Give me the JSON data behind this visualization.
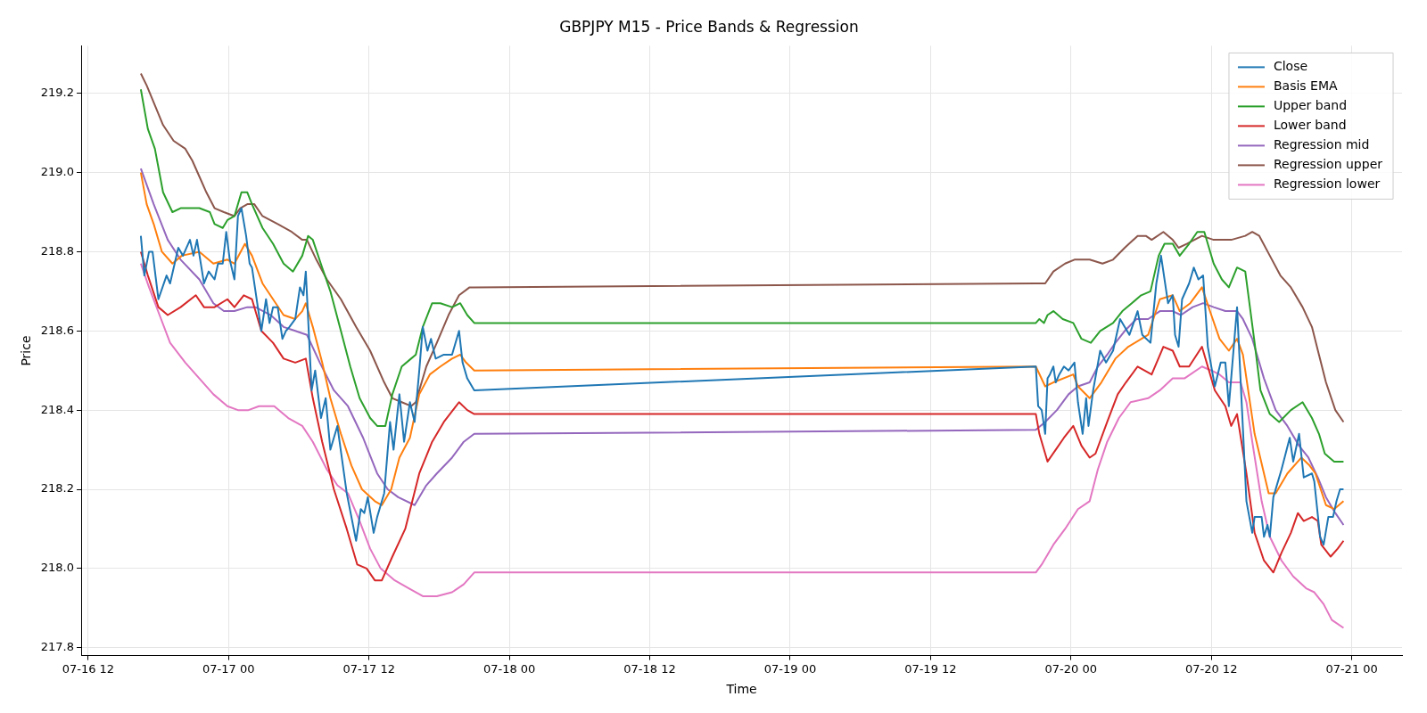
{
  "chart_data": {
    "type": "line",
    "title": "GBPJPY M15 - Price Bands & Regression",
    "xlabel": "Time",
    "ylabel": "Price",
    "xlim": [
      "--07-16T11:24",
      "--07-21T04:18"
    ],
    "ylim": [
      217.78,
      219.32
    ],
    "xticks": [
      {
        "value": "--07-16T12:00",
        "label": "07-16 12"
      },
      {
        "value": "--07-17T00:00",
        "label": "07-17 00"
      },
      {
        "value": "--07-17T12:00",
        "label": "07-17 12"
      },
      {
        "value": "--07-18T00:00",
        "label": "07-18 00"
      },
      {
        "value": "--07-18T12:00",
        "label": "07-18 12"
      },
      {
        "value": "--07-19T00:00",
        "label": "07-19 00"
      },
      {
        "value": "--07-19T12:00",
        "label": "07-19 12"
      },
      {
        "value": "--07-20T00:00",
        "label": "07-20 00"
      },
      {
        "value": "--07-20T12:00",
        "label": "07-20 12"
      },
      {
        "value": "--07-21T00:00",
        "label": "07-21 00"
      }
    ],
    "yticks": [
      217.8,
      {
        "value": 218,
        "label": "218.0"
      },
      218.2,
      218.4,
      218.6,
      218.8,
      {
        "value": 219,
        "label": "219.0"
      },
      219.2
    ],
    "grid": true,
    "legend": "top right",
    "marker": "none",
    "line_style": "solid",
    "series": [
      {
        "name": "Close",
        "color": "#1f77b4",
        "x": [
          "--07-16T16:30",
          "--07-16T16:48",
          "--07-16T17:12",
          "--07-16T17:30",
          "--07-16T18:00",
          "--07-16T18:42",
          "--07-16T19:00",
          "--07-16T19:42",
          "--07-16T20:06",
          "--07-16T20:42",
          "--07-16T21:00",
          "--07-16T21:18",
          "--07-16T21:54",
          "--07-16T22:18",
          "--07-16T22:48",
          "--07-16T23:06",
          "--07-16T23:30",
          "--07-16T23:48",
          "--07-17T00:06",
          "--07-17T00:30",
          "--07-17T00:48",
          "--07-17T01:06",
          "--07-17T01:30",
          "--07-17T01:48",
          "--07-17T02:00",
          "--07-17T02:48",
          "--07-17T03:12",
          "--07-17T03:30",
          "--07-17T03:48",
          "--07-17T04:12",
          "--07-17T04:36",
          "--07-17T04:54",
          "--07-17T05:12",
          "--07-17T05:42",
          "--07-17T06:06",
          "--07-17T06:24",
          "--07-17T06:36",
          "--07-17T07:06",
          "--07-17T07:24",
          "--07-17T07:54",
          "--07-17T08:18",
          "--07-17T08:42",
          "--07-17T09:18",
          "--07-17T10:06",
          "--07-17T10:54",
          "--07-17T11:18",
          "--07-17T11:36",
          "--07-17T11:54",
          "--07-17T12:24",
          "--07-17T12:42",
          "--07-17T13:18",
          "--07-17T13:48",
          "--07-17T14:06",
          "--07-17T14:36",
          "--07-17T15:00",
          "--07-17T15:30",
          "--07-17T15:54",
          "--07-17T16:18",
          "--07-17T16:36",
          "--07-17T17:00",
          "--07-17T17:18",
          "--07-17T17:42",
          "--07-17T18:24",
          "--07-17T19:06",
          "--07-17T19:42",
          "--07-17T20:00",
          "--07-17T20:24",
          "--07-17T21:00",
          "--07-19T21:00",
          "--07-19T21:12",
          "--07-19T21:30",
          "--07-19T21:48",
          "--07-19T22:00",
          "--07-19T22:12",
          "--07-19T22:30",
          "--07-19T22:42",
          "--07-19T23:00",
          "--07-19T23:24",
          "--07-19T23:48",
          "--07-20T00:18",
          "--07-20T00:36",
          "--07-20T01:00",
          "--07-20T01:18",
          "--07-20T01:30",
          "--07-20T01:54",
          "--07-20T02:30",
          "--07-20T03:00",
          "--07-20T03:36",
          "--07-20T04:12",
          "--07-20T05:00",
          "--07-20T05:42",
          "--07-20T06:06",
          "--07-20T06:48",
          "--07-20T07:18",
          "--07-20T07:42",
          "--07-20T08:18",
          "--07-20T08:42",
          "--07-20T08:54",
          "--07-20T09:12",
          "--07-20T09:30",
          "--07-20T10:06",
          "--07-20T10:30",
          "--07-20T10:54",
          "--07-20T11:18",
          "--07-20T11:42",
          "--07-20T12:18",
          "--07-20T12:48",
          "--07-20T13:12",
          "--07-20T13:30",
          "--07-20T14:12",
          "--07-20T15:00",
          "--07-20T15:30",
          "--07-20T15:42",
          "--07-20T16:18",
          "--07-20T16:30",
          "--07-20T16:48",
          "--07-20T17:00",
          "--07-20T17:18",
          "--07-20T18:00",
          "--07-20T18:42",
          "--07-20T19:00",
          "--07-20T19:30",
          "--07-20T19:54",
          "--07-20T20:36",
          "--07-20T20:48",
          "--07-20T21:18",
          "--07-20T21:36",
          "--07-20T22:00",
          "--07-20T22:24",
          "--07-20T22:42",
          "--07-20T23:00",
          "--07-20T23:18"
        ],
        "values": [
          218.84,
          218.74,
          218.8,
          218.8,
          218.68,
          218.74,
          218.72,
          218.81,
          218.79,
          218.83,
          218.79,
          218.83,
          218.72,
          218.75,
          218.73,
          218.77,
          218.77,
          218.85,
          218.78,
          218.73,
          218.89,
          218.91,
          218.84,
          218.77,
          218.76,
          218.6,
          218.68,
          218.62,
          218.66,
          218.66,
          218.58,
          218.6,
          218.61,
          218.63,
          218.71,
          218.69,
          218.75,
          218.45,
          218.5,
          218.38,
          218.43,
          218.3,
          218.36,
          218.19,
          218.07,
          218.15,
          218.14,
          218.18,
          218.09,
          218.13,
          218.19,
          218.37,
          218.3,
          218.44,
          218.32,
          218.42,
          218.37,
          218.5,
          218.61,
          218.55,
          218.58,
          218.53,
          218.54,
          218.54,
          218.6,
          218.52,
          218.48,
          218.45,
          218.51,
          218.41,
          218.4,
          218.34,
          218.48,
          218.49,
          218.51,
          218.47,
          218.49,
          218.51,
          218.5,
          218.52,
          218.42,
          218.34,
          218.43,
          218.36,
          218.45,
          218.55,
          218.52,
          218.55,
          218.63,
          218.59,
          218.65,
          218.59,
          218.57,
          218.72,
          218.79,
          218.67,
          218.69,
          218.59,
          218.56,
          218.68,
          218.72,
          218.76,
          218.73,
          218.74,
          218.56,
          218.46,
          218.52,
          218.52,
          218.41,
          218.66,
          218.17,
          218.09,
          218.13,
          218.13,
          218.08,
          218.11,
          218.08,
          218.18,
          218.25,
          218.33,
          218.27,
          218.34,
          218.23,
          218.24,
          218.22,
          218.08,
          218.06,
          218.13,
          218.13,
          218.17,
          218.2,
          218.2
        ]
      },
      {
        "name": "Basis EMA",
        "color": "#ff7f0e",
        "x": [
          "--07-16T16:30",
          "--07-16T17:00",
          "--07-16T17:36",
          "--07-16T18:18",
          "--07-16T19:12",
          "--07-16T20:00",
          "--07-16T21:30",
          "--07-16T22:42",
          "--07-16T23:54",
          "--07-17T00:30",
          "--07-17T01:24",
          "--07-17T02:00",
          "--07-17T02:54",
          "--07-17T03:48",
          "--07-17T04:42",
          "--07-17T05:42",
          "--07-17T06:18",
          "--07-17T06:36",
          "--07-17T07:12",
          "--07-17T08:00",
          "--07-17T08:42",
          "--07-17T09:36",
          "--07-17T10:30",
          "--07-17T11:24",
          "--07-17T12:30",
          "--07-17T13:06",
          "--07-17T13:54",
          "--07-17T14:36",
          "--07-17T15:30",
          "--07-17T16:18",
          "--07-17T17:12",
          "--07-17T18:06",
          "--07-17T19:06",
          "--07-17T19:48",
          "--07-17T20:18",
          "--07-17T21:00",
          "--07-19T21:00",
          "--07-19T21:48",
          "--07-19T22:30",
          "--07-20T00:12",
          "--07-20T00:36",
          "--07-20T01:36",
          "--07-20T02:36",
          "--07-20T03:48",
          "--07-20T04:54",
          "--07-20T06:36",
          "--07-20T07:36",
          "--07-20T08:42",
          "--07-20T09:18",
          "--07-20T10:12",
          "--07-20T11:12",
          "--07-20T12:00",
          "--07-20T12:42",
          "--07-20T13:30",
          "--07-20T14:12",
          "--07-20T14:42",
          "--07-20T15:42",
          "--07-20T16:54",
          "--07-20T17:30",
          "--07-20T18:30",
          "--07-20T19:42",
          "--07-20T20:24",
          "--07-20T20:54",
          "--07-20T21:48",
          "--07-20T22:30",
          "--07-20T23:18"
        ],
        "values": [
          219.0,
          218.92,
          218.87,
          218.8,
          218.77,
          218.79,
          218.8,
          218.77,
          218.78,
          218.77,
          218.82,
          218.79,
          218.72,
          218.68,
          218.64,
          218.63,
          218.65,
          218.67,
          218.61,
          218.52,
          218.43,
          218.34,
          218.26,
          218.2,
          218.17,
          218.16,
          218.2,
          218.28,
          218.33,
          218.44,
          218.49,
          218.51,
          218.53,
          218.54,
          218.52,
          218.5,
          218.51,
          218.46,
          218.47,
          218.49,
          218.46,
          218.43,
          218.47,
          218.53,
          218.56,
          218.59,
          218.68,
          218.69,
          218.65,
          218.67,
          218.71,
          218.64,
          218.58,
          218.55,
          218.58,
          218.54,
          218.34,
          218.19,
          218.19,
          218.24,
          218.28,
          218.26,
          218.24,
          218.16,
          218.15,
          218.17
        ]
      },
      {
        "name": "Upper band",
        "color": "#2ca02c",
        "x": [
          "--07-16T16:30",
          "--07-16T17:06",
          "--07-16T17:42",
          "--07-16T18:24",
          "--07-16T19:12",
          "--07-16T19:54",
          "--07-16T21:30",
          "--07-16T22:24",
          "--07-16T22:48",
          "--07-16T23:30",
          "--07-16T23:54",
          "--07-17T00:30",
          "--07-17T01:06",
          "--07-17T01:36",
          "--07-17T02:00",
          "--07-17T02:54",
          "--07-17T03:48",
          "--07-17T04:42",
          "--07-17T05:30",
          "--07-17T06:18",
          "--07-17T06:48",
          "--07-17T07:12",
          "--07-17T08:00",
          "--07-17T08:42",
          "--07-17T09:36",
          "--07-17T10:24",
          "--07-17T11:12",
          "--07-17T12:06",
          "--07-17T12:42",
          "--07-17T13:24",
          "--07-17T14:00",
          "--07-17T14:48",
          "--07-17T15:36",
          "--07-17T16:00",
          "--07-17T16:36",
          "--07-17T17:24",
          "--07-17T18:06",
          "--07-17T19:06",
          "--07-17T19:48",
          "--07-17T20:24",
          "--07-17T21:00",
          "--07-19T21:00",
          "--07-19T21:18",
          "--07-19T21:42",
          "--07-19T22:00",
          "--07-19T22:30",
          "--07-19T23:18",
          "--07-20T00:12",
          "--07-20T00:54",
          "--07-20T01:42",
          "--07-20T02:30",
          "--07-20T03:36",
          "--07-20T04:24",
          "--07-20T05:12",
          "--07-20T06:00",
          "--07-20T06:48",
          "--07-20T07:30",
          "--07-20T08:00",
          "--07-20T08:42",
          "--07-20T09:18",
          "--07-20T10:06",
          "--07-20T10:48",
          "--07-20T11:24",
          "--07-20T12:12",
          "--07-20T12:54",
          "--07-20T13:30",
          "--07-20T14:12",
          "--07-20T14:54",
          "--07-20T15:42",
          "--07-20T16:12",
          "--07-20T17:00",
          "--07-20T17:48",
          "--07-20T18:48",
          "--07-20T19:48",
          "--07-20T20:36",
          "--07-20T21:12",
          "--07-20T21:42",
          "--07-20T22:30",
          "--07-20T23:18"
        ],
        "values": [
          219.21,
          219.11,
          219.06,
          218.95,
          218.9,
          218.91,
          218.91,
          218.9,
          218.87,
          218.86,
          218.88,
          218.89,
          218.95,
          218.95,
          218.92,
          218.86,
          218.82,
          218.77,
          218.75,
          218.79,
          218.84,
          218.83,
          218.76,
          218.7,
          218.6,
          218.51,
          218.43,
          218.38,
          218.36,
          218.36,
          218.44,
          218.51,
          218.53,
          218.54,
          218.61,
          218.67,
          218.67,
          218.66,
          218.67,
          218.64,
          218.62,
          218.62,
          218.63,
          218.62,
          218.64,
          218.65,
          218.63,
          218.62,
          218.58,
          218.57,
          218.6,
          218.62,
          218.65,
          218.67,
          218.69,
          218.7,
          218.79,
          218.82,
          218.82,
          218.79,
          218.82,
          218.85,
          218.85,
          218.77,
          218.73,
          218.71,
          218.76,
          218.75,
          218.57,
          218.45,
          218.39,
          218.37,
          218.4,
          218.42,
          218.38,
          218.34,
          218.29,
          218.27,
          218.27
        ]
      },
      {
        "name": "Lower band",
        "color": "#d62728",
        "x": [
          "--07-16T16:30",
          "--07-16T17:06",
          "--07-16T18:00",
          "--07-16T18:48",
          "--07-16T19:54",
          "--07-16T21:12",
          "--07-16T21:54",
          "--07-16T22:48",
          "--07-16T23:54",
          "--07-17T00:30",
          "--07-17T01:18",
          "--07-17T02:00",
          "--07-17T02:48",
          "--07-17T03:48",
          "--07-17T04:42",
          "--07-17T05:42",
          "--07-17T06:36",
          "--07-17T07:12",
          "--07-17T08:00",
          "--07-17T09:00",
          "--07-17T10:06",
          "--07-17T11:00",
          "--07-17T11:48",
          "--07-17T12:30",
          "--07-17T13:06",
          "--07-17T14:00",
          "--07-17T15:06",
          "--07-17T16:18",
          "--07-17T17:24",
          "--07-17T18:24",
          "--07-17T19:42",
          "--07-17T20:24",
          "--07-17T21:00",
          "--07-19T21:00",
          "--07-19T21:18",
          "--07-19T22:00",
          "--07-19T22:42",
          "--07-19T23:24",
          "--07-20T00:12",
          "--07-20T00:54",
          "--07-20T01:36",
          "--07-20T02:06",
          "--07-20T03:06",
          "--07-20T04:00",
          "--07-20T04:42",
          "--07-20T05:42",
          "--07-20T06:54",
          "--07-20T07:54",
          "--07-20T08:42",
          "--07-20T09:18",
          "--07-20T10:06",
          "--07-20T11:12",
          "--07-20T12:18",
          "--07-20T13:12",
          "--07-20T13:42",
          "--07-20T14:12",
          "--07-20T15:00",
          "--07-20T15:42",
          "--07-20T16:30",
          "--07-20T17:18",
          "--07-20T18:00",
          "--07-20T18:48",
          "--07-20T19:24",
          "--07-20T19:54",
          "--07-20T20:36",
          "--07-20T21:06",
          "--07-20T21:24",
          "--07-20T22:12",
          "--07-20T22:48",
          "--07-20T23:18"
        ],
        "values": [
          218.8,
          218.74,
          218.66,
          218.64,
          218.66,
          218.69,
          218.66,
          218.66,
          218.68,
          218.66,
          218.69,
          218.68,
          218.6,
          218.57,
          218.53,
          218.52,
          218.53,
          218.43,
          218.32,
          218.2,
          218.1,
          218.01,
          218.0,
          217.97,
          217.97,
          218.03,
          218.1,
          218.24,
          218.32,
          218.37,
          218.42,
          218.4,
          218.39,
          218.39,
          218.34,
          218.27,
          218.3,
          218.33,
          218.36,
          218.31,
          218.28,
          218.29,
          218.37,
          218.44,
          218.47,
          218.51,
          218.49,
          218.56,
          218.55,
          218.51,
          218.51,
          218.56,
          218.45,
          218.41,
          218.36,
          218.39,
          218.24,
          218.09,
          218.02,
          217.99,
          218.04,
          218.09,
          218.14,
          218.12,
          218.13,
          218.12,
          218.06,
          218.03,
          218.05,
          218.07
        ]
      },
      {
        "name": "Regression mid",
        "color": "#9467bd",
        "x": [
          "--07-16T16:30",
          "--07-16T17:36",
          "--07-16T18:48",
          "--07-16T19:54",
          "--07-16T21:30",
          "--07-16T22:42",
          "--07-16T23:36",
          "--07-17T00:30",
          "--07-17T01:36",
          "--07-17T02:18",
          "--07-17T03:36",
          "--07-17T04:42",
          "--07-17T05:42",
          "--07-17T06:42",
          "--07-17T07:48",
          "--07-17T09:00",
          "--07-17T10:12",
          "--07-17T11:30",
          "--07-17T12:42",
          "--07-17T13:36",
          "--07-17T14:30",
          "--07-17T15:54",
          "--07-17T16:54",
          "--07-17T17:48",
          "--07-17T19:06",
          "--07-17T20:06",
          "--07-17T21:00",
          "--07-19T21:00",
          "--07-19T21:48",
          "--07-19T22:48",
          "--07-19T23:48",
          "--07-20T00:36",
          "--07-20T01:36",
          "--07-20T02:18",
          "--07-20T03:06",
          "--07-20T03:48",
          "--07-20T04:36",
          "--07-20T05:36",
          "--07-20T06:36",
          "--07-20T07:36",
          "--07-20T08:42",
          "--07-20T09:24",
          "--07-20T10:24",
          "--07-20T11:18",
          "--07-20T12:12",
          "--07-20T13:12",
          "--07-20T14:12",
          "--07-20T14:42",
          "--07-20T15:30",
          "--07-20T16:30",
          "--07-20T17:30",
          "--07-20T18:30",
          "--07-20T19:30",
          "--07-20T20:18",
          "--07-20T21:06",
          "--07-20T21:48",
          "--07-20T22:36",
          "--07-20T23:18"
        ],
        "values": [
          219.01,
          218.92,
          218.83,
          218.78,
          218.73,
          218.67,
          218.65,
          218.65,
          218.66,
          218.66,
          218.64,
          218.61,
          218.6,
          218.59,
          218.52,
          218.45,
          218.41,
          218.33,
          218.24,
          218.2,
          218.18,
          218.16,
          218.21,
          218.24,
          218.28,
          218.32,
          218.34,
          218.35,
          218.37,
          218.4,
          218.44,
          218.46,
          218.47,
          218.51,
          218.54,
          218.57,
          218.6,
          218.63,
          218.63,
          218.65,
          218.65,
          218.64,
          218.66,
          218.67,
          218.66,
          218.65,
          218.65,
          218.63,
          218.58,
          218.48,
          218.4,
          218.36,
          218.31,
          218.28,
          218.23,
          218.18,
          218.14,
          218.11
        ]
      },
      {
        "name": "Regression upper",
        "color": "#8c564b",
        "x": [
          "--07-16T16:30",
          "--07-16T17:00",
          "--07-16T17:42",
          "--07-16T18:24",
          "--07-16T19:18",
          "--07-16T20:18",
          "--07-16T20:54",
          "--07-16T21:30",
          "--07-16T22:06",
          "--07-16T22:48",
          "--07-16T23:36",
          "--07-17T00:30",
          "--07-17T01:00",
          "--07-17T01:36",
          "--07-17T02:12",
          "--07-17T02:54",
          "--07-17T04:12",
          "--07-17T05:24",
          "--07-17T06:18",
          "--07-17T06:42",
          "--07-17T07:30",
          "--07-17T08:24",
          "--07-17T09:36",
          "--07-17T10:54",
          "--07-17T12:06",
          "--07-17T13:18",
          "--07-17T14:00",
          "--07-17T14:48",
          "--07-17T15:36",
          "--07-17T16:00",
          "--07-17T16:54",
          "--07-17T17:48",
          "--07-17T18:48",
          "--07-17T19:42",
          "--07-17T20:36",
          "--07-17T21:00",
          "--07-19T21:00",
          "--07-19T21:48",
          "--07-19T22:30",
          "--07-19T23:30",
          "--07-20T00:18",
          "--07-20T01:36",
          "--07-20T02:42",
          "--07-20T03:36",
          "--07-20T04:36",
          "--07-20T05:42",
          "--07-20T06:24",
          "--07-20T06:54",
          "--07-20T07:54",
          "--07-20T08:42",
          "--07-20T09:12",
          "--07-20T09:54",
          "--07-20T11:12",
          "--07-20T12:12",
          "--07-20T13:42",
          "--07-20T14:54",
          "--07-20T15:30",
          "--07-20T16:06",
          "--07-20T17:00",
          "--07-20T17:54",
          "--07-20T18:48",
          "--07-20T19:48",
          "--07-20T20:36",
          "--07-20T21:12",
          "--07-20T21:48",
          "--07-20T22:36",
          "--07-20T23:18"
        ],
        "values": [
          219.25,
          219.22,
          219.17,
          219.12,
          219.08,
          219.06,
          219.03,
          218.99,
          218.95,
          218.91,
          218.9,
          218.89,
          218.91,
          218.92,
          218.92,
          218.89,
          218.87,
          218.85,
          218.83,
          218.83,
          218.78,
          218.73,
          218.68,
          218.61,
          218.55,
          218.47,
          218.43,
          218.42,
          218.41,
          218.42,
          218.51,
          218.57,
          218.64,
          218.69,
          218.71,
          218.71,
          218.72,
          218.72,
          218.75,
          218.77,
          218.78,
          218.78,
          218.77,
          218.78,
          218.81,
          218.84,
          218.84,
          218.83,
          218.85,
          218.83,
          218.81,
          218.82,
          218.84,
          218.83,
          218.83,
          218.84,
          218.85,
          218.84,
          218.79,
          218.74,
          218.71,
          218.66,
          218.61,
          218.54,
          218.47,
          218.4,
          218.37
        ]
      },
      {
        "name": "Regression lower",
        "color": "#e377c2",
        "x": [
          "--07-16T16:30",
          "--07-16T17:12",
          "--07-16T18:06",
          "--07-16T19:00",
          "--07-16T20:18",
          "--07-16T21:30",
          "--07-16T22:42",
          "--07-16T23:54",
          "--07-17T00:48",
          "--07-17T01:42",
          "--07-17T02:36",
          "--07-17T03:54",
          "--07-17T05:06",
          "--07-17T06:18",
          "--07-17T07:12",
          "--07-17T08:24",
          "--07-17T09:18",
          "--07-17T10:12",
          "--07-17T11:12",
          "--07-17T12:06",
          "--07-17T13:00",
          "--07-17T14:12",
          "--07-17T15:24",
          "--07-17T16:36",
          "--07-17T17:48",
          "--07-17T19:06",
          "--07-17T20:06",
          "--07-17T21:00",
          "--07-19T21:00",
          "--07-19T21:30",
          "--07-19T22:30",
          "--07-19T23:30",
          "--07-20T00:36",
          "--07-20T01:36",
          "--07-20T02:18",
          "--07-20T03:06",
          "--07-20T04:06",
          "--07-20T05:06",
          "--07-20T06:36",
          "--07-20T07:36",
          "--07-20T08:42",
          "--07-20T09:42",
          "--07-20T11:12",
          "--07-20T12:00",
          "--07-20T12:42",
          "--07-20T13:30",
          "--07-20T14:30",
          "--07-20T15:00",
          "--07-20T15:30",
          "--07-20T16:18",
          "--07-20T17:00",
          "--07-20T18:00",
          "--07-20T19:00",
          "--07-20T20:06",
          "--07-20T20:48",
          "--07-20T21:36",
          "--07-20T22:18",
          "--07-20T23:18"
        ],
        "values": [
          218.77,
          218.71,
          218.64,
          218.57,
          218.52,
          218.48,
          218.44,
          218.41,
          218.4,
          218.4,
          218.41,
          218.41,
          218.38,
          218.36,
          218.32,
          218.25,
          218.21,
          218.19,
          218.12,
          218.05,
          218.0,
          217.97,
          217.95,
          217.93,
          217.93,
          217.94,
          217.96,
          217.99,
          217.99,
          218.01,
          218.06,
          218.1,
          218.15,
          218.17,
          218.25,
          218.32,
          218.38,
          218.42,
          218.43,
          218.45,
          218.48,
          218.48,
          218.51,
          218.5,
          218.49,
          218.47,
          218.47,
          218.42,
          218.32,
          218.17,
          218.08,
          218.02,
          217.98,
          217.95,
          217.94,
          217.91,
          217.87,
          217.85
        ]
      }
    ]
  }
}
